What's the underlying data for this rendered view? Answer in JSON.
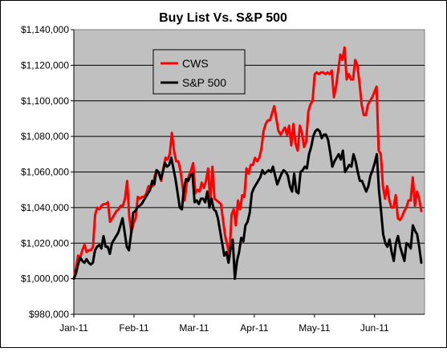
{
  "chart_data": {
    "type": "line",
    "title": "Buy List Vs. S&P 500",
    "xlabel": "",
    "ylabel": "",
    "x_tick_labels": [
      "Jan-11",
      "Feb-11",
      "Mar-11",
      "Apr-11",
      "May-11",
      "Jun-11"
    ],
    "y_tick_labels": [
      "$980,000",
      "$1,000,000",
      "$1,020,000",
      "$1,040,000",
      "$1,060,000",
      "$1,080,000",
      "$1,100,000",
      "$1,120,000",
      "$1,140,000"
    ],
    "ylim": [
      980000,
      1140000
    ],
    "grid": "horizontal",
    "legend_position": "top-left inside plot",
    "plot_background": "#c0c0c0",
    "series": [
      {
        "name": "CWS",
        "color": "#ff0000",
        "values": [
          1000000,
          1006000,
          1013000,
          1012000,
          1016000,
          1019000,
          1015000,
          1016000,
          1016000,
          1018000,
          1036000,
          1040000,
          1039000,
          1041000,
          1042000,
          1042000,
          1043000,
          1032000,
          1034000,
          1036000,
          1038000,
          1039000,
          1041000,
          1041000,
          1045000,
          1055000,
          1035000,
          1026000,
          1031000,
          1034000,
          1046000,
          1045000,
          1046000,
          1046000,
          1048000,
          1052000,
          1052000,
          1052000,
          1058000,
          1061000,
          1059000,
          1055000,
          1062000,
          1068000,
          1067000,
          1070000,
          1082000,
          1072000,
          1066000,
          1066000,
          1061000,
          1052000,
          1044000,
          1054000,
          1058000,
          1061000,
          1065000,
          1048000,
          1050000,
          1049000,
          1054000,
          1051000,
          1055000,
          1062000,
          1042000,
          1063000,
          1045000,
          1044000,
          1043000,
          1042000,
          1033000,
          1024000,
          1019000,
          1013000,
          1036000,
          1039000,
          1030000,
          1044000,
          1039000,
          1047000,
          1046000,
          1062000,
          1059000,
          1064000,
          1064000,
          1068000,
          1066000,
          1068000,
          1073000,
          1083000,
          1087000,
          1089000,
          1089000,
          1093000,
          1097000,
          1090000,
          1083000,
          1081000,
          1083000,
          1085000,
          1081000,
          1086000,
          1075000,
          1087000,
          1076000,
          1072000,
          1086000,
          1082000,
          1074000,
          1077000,
          1094000,
          1098000,
          1100000,
          1115000,
          1116000,
          1115000,
          1116000,
          1116000,
          1115000,
          1116000,
          1115000,
          1117000,
          1102000,
          1108000,
          1117000,
          1126000,
          1123000,
          1130000,
          1112000,
          1115000,
          1112000,
          1112000,
          1123000,
          1120000,
          1110000,
          1098000,
          1092000,
          1092000,
          1098000,
          1100000,
          1102000,
          1105000,
          1108000,
          1072000,
          1070000,
          1052000,
          1045000,
          1052000,
          1044000,
          1040000,
          1040000,
          1047000,
          1034000,
          1033000,
          1035000,
          1038000,
          1040000,
          1044000,
          1044000,
          1057000,
          1041000,
          1049000,
          1045000,
          1038000
        ]
      },
      {
        "name": "S&P 500",
        "color": "#000000",
        "values": [
          1000000,
          1003000,
          1008000,
          1012000,
          1010000,
          1009000,
          1011000,
          1009000,
          1008000,
          1009000,
          1016000,
          1018000,
          1019000,
          1017000,
          1024000,
          1018000,
          1018000,
          1014000,
          1020000,
          1022000,
          1024000,
          1026000,
          1030000,
          1034000,
          1026000,
          1018000,
          1016000,
          1025000,
          1037000,
          1038000,
          1040000,
          1041000,
          1042000,
          1044000,
          1046000,
          1048000,
          1050000,
          1055000,
          1053000,
          1061000,
          1060000,
          1056000,
          1060000,
          1065000,
          1063000,
          1064000,
          1068000,
          1062000,
          1056000,
          1048000,
          1040000,
          1039000,
          1051000,
          1056000,
          1055000,
          1058000,
          1059000,
          1043000,
          1044000,
          1042000,
          1045000,
          1045000,
          1043000,
          1049000,
          1040000,
          1045000,
          1039000,
          1038000,
          1034000,
          1027000,
          1020000,
          1013000,
          1015000,
          1009000,
          1017000,
          1022000,
          1000000,
          1010000,
          1015000,
          1023000,
          1021000,
          1030000,
          1032000,
          1037000,
          1048000,
          1051000,
          1053000,
          1055000,
          1057000,
          1061000,
          1059000,
          1060000,
          1061000,
          1060000,
          1063000,
          1058000,
          1053000,
          1056000,
          1059000,
          1061000,
          1060000,
          1058000,
          1052000,
          1049000,
          1059000,
          1049000,
          1048000,
          1060000,
          1061000,
          1063000,
          1062000,
          1070000,
          1074000,
          1080000,
          1083000,
          1084000,
          1083000,
          1079000,
          1081000,
          1081000,
          1078000,
          1071000,
          1063000,
          1066000,
          1068000,
          1070000,
          1067000,
          1072000,
          1060000,
          1062000,
          1064000,
          1063000,
          1070000,
          1066000,
          1060000,
          1055000,
          1055000,
          1052000,
          1049000,
          1052000,
          1058000,
          1061000,
          1065000,
          1070000,
          1050000,
          1038000,
          1025000,
          1020000,
          1018000,
          1022000,
          1015000,
          1010000,
          1020000,
          1024000,
          1018000,
          1014000,
          1010000,
          1020000,
          1019000,
          1017000,
          1030000,
          1027000,
          1025000,
          1018000,
          1009000
        ]
      }
    ]
  }
}
